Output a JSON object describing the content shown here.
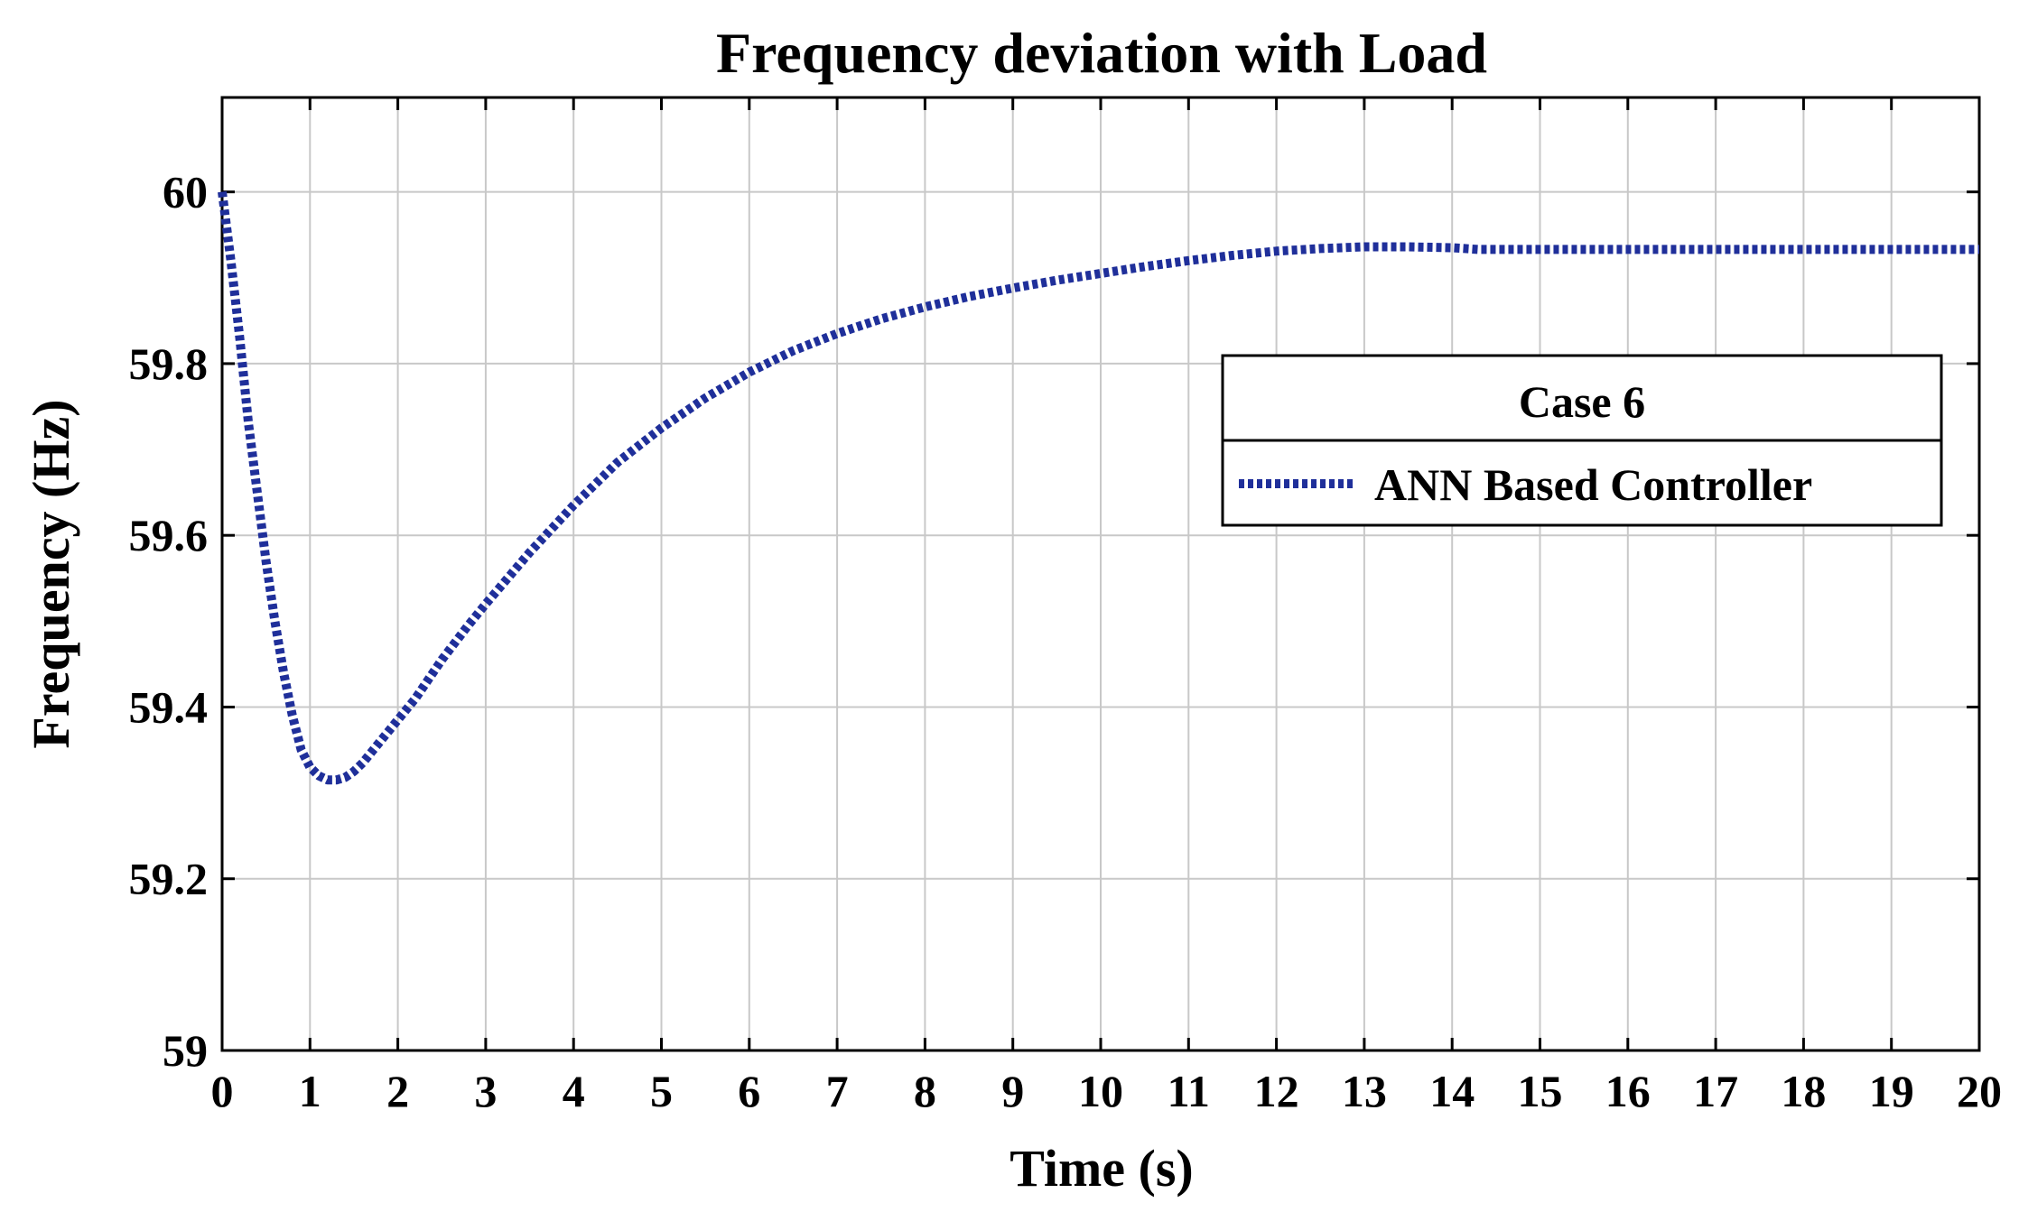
{
  "chart_data": {
    "type": "line",
    "title": "Frequency deviation with Load",
    "xlabel": "Time (s)",
    "ylabel": "Frequency (Hz)",
    "xlim": [
      0,
      20
    ],
    "ylim": [
      59,
      60.11
    ],
    "xticks": [
      0,
      1,
      2,
      3,
      4,
      5,
      6,
      7,
      8,
      9,
      10,
      11,
      12,
      13,
      14,
      15,
      16,
      17,
      18,
      19,
      20
    ],
    "yticks": [
      59,
      59.2,
      59.4,
      59.6,
      59.8,
      60
    ],
    "xtick_labels": [
      "0",
      "1",
      "2",
      "3",
      "4",
      "5",
      "6",
      "7",
      "8",
      "9",
      "10",
      "11",
      "12",
      "13",
      "14",
      "15",
      "16",
      "17",
      "18",
      "19",
      "20"
    ],
    "ytick_labels": [
      "59",
      "59.2",
      "59.4",
      "59.6",
      "59.8",
      "60"
    ],
    "grid": true,
    "legend": {
      "placement": "right",
      "title": "Case 6"
    },
    "series": [
      {
        "name": "ANN Based Controller",
        "color": "#1f2f9a",
        "style": "dotted",
        "x": [
          0,
          0.1,
          0.2,
          0.3,
          0.4,
          0.5,
          0.6,
          0.7,
          0.8,
          0.9,
          1.0,
          1.1,
          1.2,
          1.3,
          1.4,
          1.5,
          1.6,
          1.8,
          2.0,
          2.2,
          2.5,
          2.8,
          3.0,
          3.5,
          4.0,
          4.5,
          5.0,
          5.5,
          6.0,
          6.5,
          7.0,
          7.5,
          8.0,
          8.5,
          9.0,
          9.5,
          10.0,
          10.5,
          11.0,
          11.5,
          12.0,
          12.5,
          13.0,
          13.5,
          14.0,
          14.3,
          15.0,
          16.0,
          17.0,
          18.0,
          19.0,
          20.0
        ],
        "y": [
          60.0,
          59.92,
          59.83,
          59.73,
          59.65,
          59.57,
          59.5,
          59.44,
          59.39,
          59.35,
          59.33,
          59.32,
          59.315,
          59.315,
          59.318,
          59.325,
          59.335,
          59.36,
          59.385,
          59.41,
          59.455,
          59.495,
          59.52,
          59.58,
          59.635,
          59.685,
          59.725,
          59.76,
          59.79,
          59.815,
          59.835,
          59.852,
          59.866,
          59.878,
          59.888,
          59.897,
          59.905,
          59.913,
          59.92,
          59.926,
          59.931,
          59.934,
          59.936,
          59.936,
          59.935,
          59.933,
          59.933,
          59.933,
          59.933,
          59.933,
          59.933,
          59.933
        ]
      }
    ]
  }
}
